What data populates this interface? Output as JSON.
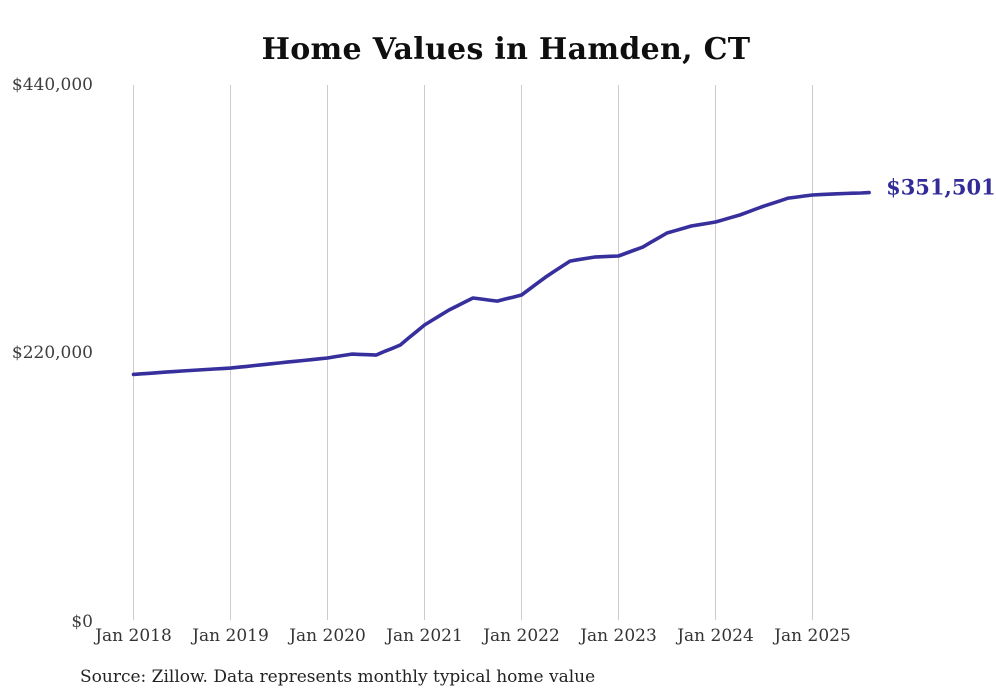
{
  "chart_data": {
    "type": "line",
    "title": "Home Values in Hamden, CT",
    "source_note": "Source: Zillow. Data represents monthly typical home value",
    "end_label": "$351,501",
    "final_value": 351501,
    "series_name": "Monthly typical home value",
    "ylim": [
      0,
      440000
    ],
    "grid": "vertical-only",
    "legend": "none",
    "y_ticks": [
      {
        "label": "$0",
        "value": 0
      },
      {
        "label": "$220,000",
        "value": 220000
      },
      {
        "label": "$440,000",
        "value": 440000
      }
    ],
    "x_tick_labels": [
      "Jan 2018",
      "Jan 2019",
      "Jan 2020",
      "Jan 2021",
      "Jan 2022",
      "Jan 2023",
      "Jan 2024",
      "Jan 2025"
    ],
    "x": [
      "2018-01",
      "2018-02",
      "2018-03",
      "2018-04",
      "2018-05",
      "2018-06",
      "2018-07",
      "2018-08",
      "2018-09",
      "2018-10",
      "2018-11",
      "2018-12",
      "2019-01",
      "2019-02",
      "2019-03",
      "2019-04",
      "2019-05",
      "2019-06",
      "2019-07",
      "2019-08",
      "2019-09",
      "2019-10",
      "2019-11",
      "2019-12",
      "2020-01",
      "2020-02",
      "2020-03",
      "2020-04",
      "2020-05",
      "2020-06",
      "2020-07",
      "2020-08",
      "2020-09",
      "2020-10",
      "2020-11",
      "2020-12",
      "2021-01",
      "2021-02",
      "2021-03",
      "2021-04",
      "2021-05",
      "2021-06",
      "2021-07",
      "2021-08",
      "2021-09",
      "2021-10",
      "2021-11",
      "2021-12",
      "2022-01",
      "2022-02",
      "2022-03",
      "2022-04",
      "2022-05",
      "2022-06",
      "2022-07",
      "2022-08",
      "2022-09",
      "2022-10",
      "2022-11",
      "2022-12",
      "2023-01",
      "2023-02",
      "2023-03",
      "2023-04",
      "2023-05",
      "2023-06",
      "2023-07",
      "2023-08",
      "2023-09",
      "2023-10",
      "2023-11",
      "2023-12",
      "2024-01",
      "2024-02",
      "2024-03",
      "2024-04",
      "2024-05",
      "2024-06",
      "2024-07",
      "2024-08",
      "2024-09",
      "2024-10",
      "2024-11",
      "2024-12",
      "2025-01",
      "2025-02",
      "2025-03",
      "2025-04",
      "2025-05",
      "2025-06",
      "2025-07",
      "2025-08"
    ],
    "values": [
      202000,
      202500,
      202900,
      203400,
      203900,
      204300,
      204800,
      205200,
      205600,
      206000,
      206400,
      206800,
      207200,
      207900,
      208600,
      209300,
      210000,
      210700,
      211400,
      212100,
      212800,
      213400,
      214100,
      214800,
      215500,
      216600,
      217600,
      218700,
      218400,
      218200,
      217900,
      220700,
      223400,
      226200,
      231700,
      237100,
      242600,
      246700,
      250800,
      254900,
      258200,
      261500,
      264800,
      264000,
      263100,
      262300,
      264000,
      265600,
      267300,
      272200,
      277200,
      282100,
      286500,
      290800,
      295200,
      296300,
      297400,
      298500,
      298800,
      299100,
      299400,
      301800,
      304300,
      306700,
      310600,
      314400,
      318300,
      320200,
      322100,
      324000,
      325100,
      326200,
      327300,
      329200,
      331200,
      333100,
      335500,
      338000,
      340400,
      342600,
      344800,
      347000,
      347800,
      348700,
      349500,
      349900,
      350200,
      350500,
      350800,
      351000,
      351200,
      351501
    ],
    "colors": {
      "line": "#37309c",
      "end_label": "#332c98",
      "grid": "#cccccc",
      "title": "#0f0f0f",
      "tick_text": "#3d3d3d",
      "source_text": "#222222",
      "background": "#ffffff"
    }
  }
}
